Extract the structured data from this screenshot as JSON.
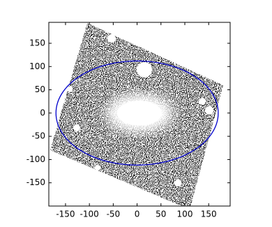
{
  "chart_data": {
    "type": "ellipse",
    "xlim": [
      -185,
      195
    ],
    "ylim": [
      -200,
      195
    ],
    "xticks": [
      -150,
      -100,
      -50,
      0,
      50,
      100,
      150
    ],
    "yticks": [
      -150,
      -100,
      -50,
      0,
      50,
      100,
      150
    ],
    "ellipse": {
      "center_x": 0,
      "center_y": 0,
      "semi_x": 170,
      "semi_y": 112,
      "color": "#0000cc"
    }
  }
}
